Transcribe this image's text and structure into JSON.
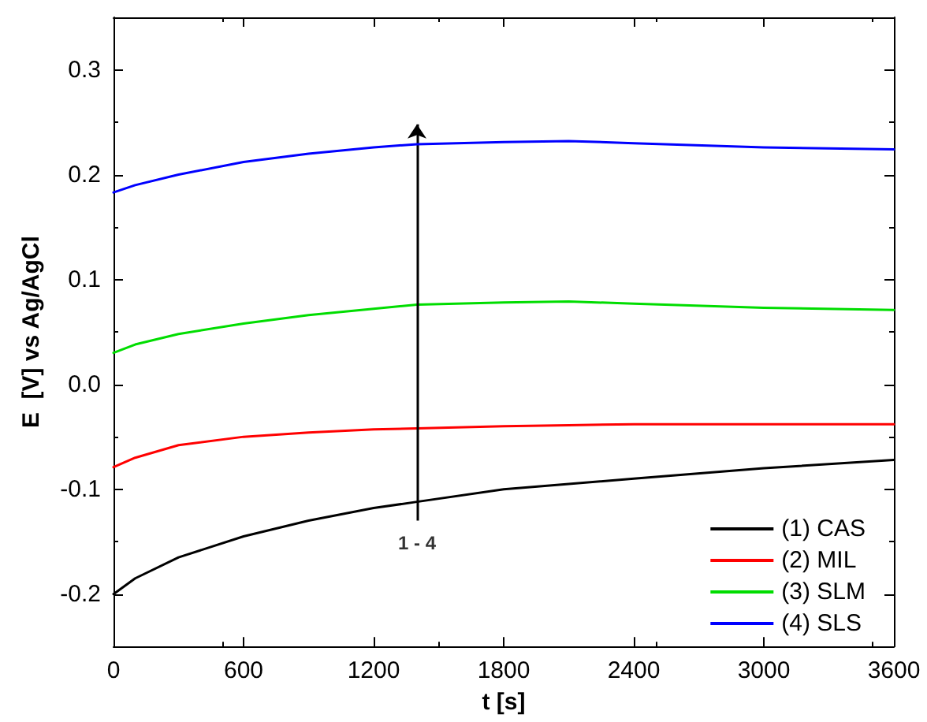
{
  "chart_data": {
    "type": "line",
    "xlabel": "t [s]",
    "ylabel": "E  [V] vs Ag/AgCl",
    "xlim": [
      0,
      3600
    ],
    "xticks": [
      0,
      600,
      1200,
      1800,
      2400,
      3000,
      3600
    ],
    "ylim": [
      -0.25,
      0.35
    ],
    "yticks": [
      {
        "value": -0.2,
        "label": "-0.2"
      },
      {
        "value": -0.1,
        "label": "-0.1"
      },
      {
        "value": 0,
        "label": "0.0"
      },
      {
        "value": 0.1,
        "label": "0.1"
      },
      {
        "value": 0.2,
        "label": "0.2"
      },
      {
        "value": 0.3,
        "label": "0.3"
      }
    ],
    "x": [
      0,
      100,
      300,
      600,
      900,
      1200,
      1400,
      1800,
      2100,
      2400,
      3000,
      3600
    ],
    "series": [
      {
        "name": "(1) CAS",
        "color": "#000000",
        "values": [
          -0.2,
          -0.185,
          -0.165,
          -0.145,
          -0.13,
          -0.118,
          -0.112,
          -0.1,
          -0.095,
          -0.09,
          -0.08,
          -0.072
        ]
      },
      {
        "name": "(2) MIL",
        "color": "#ff0000",
        "values": [
          -0.079,
          -0.07,
          -0.058,
          -0.05,
          -0.046,
          -0.043,
          -0.042,
          -0.04,
          -0.039,
          -0.038,
          -0.038,
          -0.038
        ]
      },
      {
        "name": "(3) SLM",
        "color": "#00dd00",
        "values": [
          0.03,
          0.038,
          0.048,
          0.058,
          0.066,
          0.072,
          0.076,
          0.078,
          0.079,
          0.077,
          0.073,
          0.071
        ]
      },
      {
        "name": "(4) SLS",
        "color": "#0000ff",
        "values": [
          0.183,
          0.19,
          0.2,
          0.212,
          0.22,
          0.226,
          0.229,
          0.231,
          0.232,
          0.23,
          0.226,
          0.224
        ]
      }
    ],
    "annotations": [
      {
        "text": "1 - 4",
        "x": 1400,
        "y": -0.112
      }
    ],
    "legend": "bottom right",
    "grid": false,
    "marker": "none",
    "line_style": "solid"
  }
}
